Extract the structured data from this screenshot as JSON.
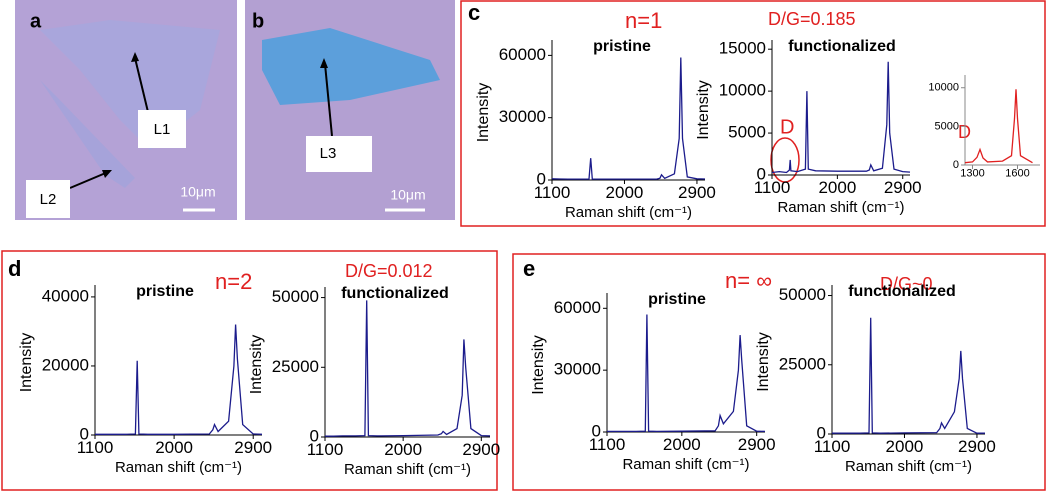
{
  "panels": {
    "a": {
      "label": "a",
      "annotations": [
        "L1",
        "L2"
      ],
      "scale": "10μm"
    },
    "b": {
      "label": "b",
      "annotations": [
        "L3"
      ],
      "scale": "10μm"
    },
    "c": {
      "label": "c",
      "layers": "n=1",
      "ratio": "D/G=0.185",
      "peak": "D",
      "inset_peak": "D"
    },
    "d": {
      "label": "d",
      "layers": "n=2",
      "ratio": "D/G=0.012"
    },
    "e": {
      "label": "e",
      "layers": "n= ∞",
      "ratio": "D/G~0"
    }
  },
  "chart_data": [
    {
      "type": "line",
      "title": "pristine",
      "xlabel": "Raman shift (cm⁻¹)",
      "ylabel": "Intensity",
      "color": "#1c1c8c",
      "x": [
        1100,
        1200,
        1300,
        1340,
        1350,
        1360,
        1450,
        1560,
        1580,
        1600,
        1700,
        2000,
        2400,
        2440,
        2460,
        2500,
        2620,
        2680,
        2700,
        2720,
        2780,
        2900,
        3000
      ],
      "values": [
        600,
        500,
        450,
        450,
        450,
        450,
        450,
        450,
        10500,
        450,
        450,
        450,
        450,
        800,
        2500,
        800,
        3000,
        20000,
        59000,
        20000,
        1500,
        600,
        500
      ],
      "xlim": [
        1100,
        3000
      ],
      "xticks": [
        1100,
        2000,
        2900
      ],
      "ylim": [
        0,
        65000
      ],
      "yticks": [
        0,
        30000,
        60000
      ]
    },
    {
      "type": "line",
      "title": "functionalized",
      "xlabel": "Raman shift (cm⁻¹)",
      "ylabel": "Intensity",
      "color": "#1c1c8c",
      "x": [
        1100,
        1200,
        1300,
        1340,
        1350,
        1360,
        1450,
        1560,
        1580,
        1600,
        1700,
        2000,
        2400,
        2440,
        2460,
        2500,
        2620,
        2680,
        2700,
        2720,
        2780,
        2900,
        3000
      ],
      "values": [
        300,
        400,
        300,
        600,
        1800,
        500,
        400,
        700,
        10000,
        700,
        500,
        450,
        450,
        600,
        1200,
        500,
        800,
        6000,
        13500,
        5000,
        700,
        400,
        350
      ],
      "xlim": [
        1100,
        3000
      ],
      "xticks": [
        1100,
        2000,
        2900
      ],
      "ylim": [
        0,
        15500
      ],
      "yticks": [
        0,
        5000,
        10000,
        15000
      ]
    },
    {
      "type": "line",
      "color": "#e02020",
      "x": [
        1250,
        1300,
        1330,
        1350,
        1370,
        1400,
        1500,
        1560,
        1580,
        1590,
        1600,
        1620,
        1700
      ],
      "values": [
        300,
        400,
        1000,
        2000,
        900,
        400,
        500,
        1200,
        6000,
        9800,
        6000,
        1200,
        300
      ],
      "xlim": [
        1250,
        1750
      ],
      "xticks": [
        1300,
        1600
      ],
      "ylim": [
        0,
        11000
      ],
      "yticks": [
        0,
        5000,
        10000
      ]
    },
    {
      "type": "line",
      "title": "pristine",
      "xlabel": "Raman shift (cm⁻¹)",
      "ylabel": "Intensity",
      "color": "#1c1c8c",
      "x": [
        1100,
        1200,
        1300,
        1340,
        1350,
        1360,
        1450,
        1560,
        1580,
        1600,
        1700,
        2000,
        2400,
        2440,
        2460,
        2500,
        2620,
        2680,
        2700,
        2720,
        2780,
        2900,
        3000
      ],
      "values": [
        200,
        200,
        200,
        200,
        200,
        200,
        200,
        300,
        21500,
        300,
        200,
        200,
        300,
        1500,
        3000,
        1000,
        4000,
        20000,
        32000,
        22000,
        3000,
        300,
        200
      ],
      "xlim": [
        1100,
        3000
      ],
      "xticks": [
        1100,
        2000,
        2900
      ],
      "ylim": [
        0,
        42000
      ],
      "yticks": [
        0,
        20000,
        40000
      ]
    },
    {
      "type": "line",
      "title": "functionalized",
      "xlabel": "Raman shift (cm⁻¹)",
      "ylabel": "Intensity",
      "color": "#1c1c8c",
      "x": [
        1100,
        1200,
        1300,
        1340,
        1350,
        1360,
        1450,
        1560,
        1580,
        1600,
        1700,
        2000,
        2400,
        2440,
        2460,
        2500,
        2620,
        2680,
        2700,
        2720,
        2780,
        2900,
        3000
      ],
      "values": [
        300,
        300,
        400,
        400,
        400,
        400,
        400,
        500,
        49000,
        500,
        400,
        500,
        700,
        1200,
        2000,
        900,
        3000,
        15000,
        35000,
        25000,
        3000,
        500,
        400
      ],
      "xlim": [
        1100,
        3000
      ],
      "xticks": [
        1100,
        2000,
        2900
      ],
      "ylim": [
        0,
        52000
      ],
      "yticks": [
        0,
        25000,
        50000
      ]
    },
    {
      "type": "line",
      "title": "pristine",
      "xlabel": "Raman shift (cm⁻¹)",
      "ylabel": "Intensity",
      "color": "#1c1c8c",
      "x": [
        1100,
        1200,
        1300,
        1340,
        1350,
        1360,
        1450,
        1560,
        1580,
        1600,
        1700,
        2000,
        2400,
        2440,
        2460,
        2500,
        2620,
        2680,
        2700,
        2720,
        2780,
        2900,
        3000
      ],
      "values": [
        300,
        300,
        300,
        300,
        300,
        300,
        300,
        400,
        57000,
        400,
        300,
        400,
        600,
        3000,
        8000,
        4000,
        10000,
        30000,
        47000,
        35000,
        3000,
        400,
        300
      ],
      "xlim": [
        1100,
        3000
      ],
      "xticks": [
        1100,
        2000,
        2900
      ],
      "ylim": [
        0,
        65000
      ],
      "yticks": [
        0,
        30000,
        60000
      ]
    },
    {
      "type": "line",
      "title": "functionalized",
      "xlabel": "Raman shift (cm⁻¹)",
      "ylabel": "Intensity",
      "color": "#1c1c8c",
      "x": [
        1100,
        1200,
        1300,
        1340,
        1350,
        1360,
        1450,
        1560,
        1580,
        1600,
        1700,
        2000,
        2400,
        2440,
        2460,
        2500,
        2620,
        2680,
        2700,
        2720,
        2780,
        2900,
        3000
      ],
      "values": [
        300,
        300,
        300,
        300,
        300,
        300,
        300,
        400,
        42000,
        400,
        300,
        400,
        500,
        2000,
        4000,
        2000,
        8000,
        20000,
        30000,
        20000,
        2000,
        300,
        300
      ],
      "xlim": [
        1100,
        3000
      ],
      "xticks": [
        1100,
        2000,
        2900
      ],
      "ylim": [
        0,
        52000
      ],
      "yticks": [
        0,
        25000,
        50000
      ]
    }
  ]
}
